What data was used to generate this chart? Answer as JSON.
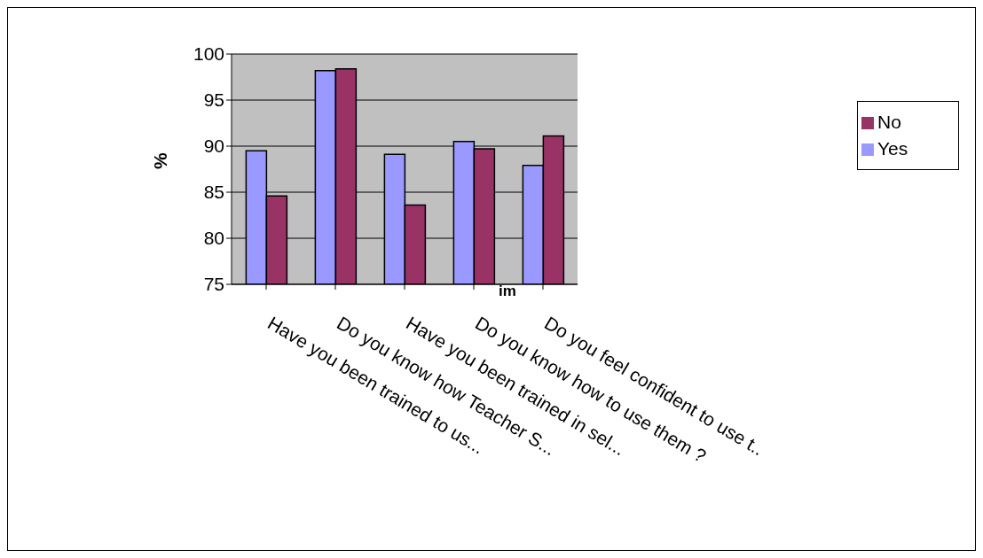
{
  "chart_data": {
    "type": "bar",
    "ylabel": "%",
    "categories": [
      "Have you been trained to us...",
      "Do you know how Teacher S...",
      "Have you been trained in sel...",
      "Do you know how to use them ?",
      "Do you feel confident to use t.."
    ],
    "series": [
      {
        "name": "Yes",
        "color": "#9999ff",
        "values": [
          89.5,
          98.2,
          89.1,
          90.5,
          87.9
        ]
      },
      {
        "name": "No",
        "color": "#993366",
        "values": [
          84.6,
          98.4,
          83.6,
          89.7,
          91.1
        ]
      }
    ],
    "ylim": [
      75,
      100
    ],
    "yticks": [
      75,
      80,
      85,
      90,
      95,
      100
    ],
    "grid": "y",
    "legend": "right",
    "annotations": [
      "im"
    ]
  }
}
